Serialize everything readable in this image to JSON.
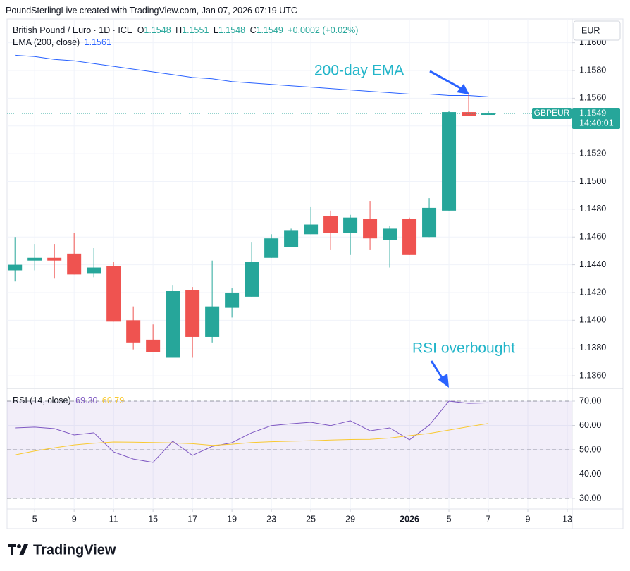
{
  "header": {
    "attribution": "PoundSterlingLive created with TradingView.com, Jan 07, 2026 07:19 UTC"
  },
  "chart_data": [
    {
      "type": "candlestick",
      "symbol": "British Pound / Euro · 1D · ICE",
      "ohlc_legend": [
        {
          "label": "O",
          "value": "1.1548"
        },
        {
          "label": "H",
          "value": "1.1551"
        },
        {
          "label": "L",
          "value": "1.1548"
        },
        {
          "label": "C",
          "value": "1.1549"
        }
      ],
      "change": "+0.0002 (+0.02%)",
      "currency": "EUR",
      "ticker": "GBPEUR",
      "last_price": "1.1549",
      "countdown": "14:40:01",
      "x": [
        0,
        1,
        2,
        3,
        4,
        5,
        6,
        7,
        8,
        9,
        10,
        11,
        12,
        13,
        14,
        15,
        16,
        17,
        18,
        19,
        20,
        21,
        22,
        23,
        24
      ],
      "xlim": [
        -0.4,
        28.25
      ],
      "open": [
        1.1436,
        1.1443,
        1.1445,
        1.1448,
        1.1434,
        1.1439,
        1.14,
        1.1386,
        1.1373,
        1.1422,
        1.1388,
        1.1409,
        1.1417,
        1.1445,
        1.1453,
        1.1462,
        1.1475,
        1.1463,
        1.1473,
        1.1458,
        1.1473,
        1.146,
        1.1479,
        1.155,
        1.1548
      ],
      "high": [
        1.146,
        1.1455,
        1.1455,
        1.1463,
        1.1452,
        1.1442,
        1.141,
        1.1397,
        1.1425,
        1.1424,
        1.1443,
        1.1423,
        1.1456,
        1.1462,
        1.1466,
        1.1482,
        1.1479,
        1.1476,
        1.1486,
        1.1468,
        1.1474,
        1.1488,
        1.1551,
        1.1563,
        1.1551
      ],
      "low": [
        1.1428,
        1.1436,
        1.143,
        1.1433,
        1.1431,
        1.1399,
        1.1379,
        1.1377,
        1.1373,
        1.1373,
        1.1384,
        1.1402,
        1.1417,
        1.1445,
        1.1453,
        1.1462,
        1.1451,
        1.1447,
        1.1451,
        1.1438,
        1.1447,
        1.146,
        1.1479,
        1.1547,
        1.1548
      ],
      "close": [
        1.144,
        1.1445,
        1.1443,
        1.1433,
        1.1438,
        1.1399,
        1.1384,
        1.1377,
        1.1421,
        1.1388,
        1.141,
        1.142,
        1.1442,
        1.1459,
        1.1465,
        1.1469,
        1.1463,
        1.1474,
        1.1459,
        1.1466,
        1.1447,
        1.1481,
        1.155,
        1.1547,
        1.1549
      ],
      "up_color": "#26a69a",
      "down_color": "#ef5350",
      "grid": true,
      "ylim": [
        1.13514,
        1.16171
      ],
      "yticks": [
        {
          "value": 1.136,
          "label": "1.1360"
        },
        {
          "value": 1.138,
          "label": "1.1380"
        },
        {
          "value": 1.14,
          "label": "1.1400"
        },
        {
          "value": 1.142,
          "label": "1.1420"
        },
        {
          "value": 1.144,
          "label": "1.1440"
        },
        {
          "value": 1.146,
          "label": "1.1460"
        },
        {
          "value": 1.148,
          "label": "1.1480"
        },
        {
          "value": 1.15,
          "label": "1.1500"
        },
        {
          "value": 1.152,
          "label": "1.1520"
        },
        {
          "value": 1.154,
          "label": "1.1540"
        },
        {
          "value": 1.156,
          "label": "1.1560"
        },
        {
          "value": 1.158,
          "label": "1.1580"
        },
        {
          "value": 1.16,
          "label": "1.1600"
        }
      ],
      "overlays": [
        {
          "name": "EMA (200, close)",
          "last_label": "1.1561",
          "color": "#2962ff",
          "values": [
            1.1591,
            1.159,
            1.1588,
            1.1587,
            1.1585,
            1.1583,
            1.1581,
            1.1579,
            1.1577,
            1.1575,
            1.1574,
            1.1572,
            1.1571,
            1.157,
            1.1569,
            1.1568,
            1.1567,
            1.1566,
            1.1565,
            1.1564,
            1.1563,
            1.1563,
            1.1562,
            1.1562,
            1.1561
          ]
        }
      ],
      "annotation": "200-day EMA"
    },
    {
      "type": "line",
      "title": "RSI (14, close)",
      "x": [
        0,
        1,
        2,
        3,
        4,
        5,
        6,
        7,
        8,
        9,
        10,
        11,
        12,
        13,
        14,
        15,
        16,
        17,
        18,
        19,
        20,
        21,
        22,
        23,
        24
      ],
      "xlim": [
        -0.4,
        28.25
      ],
      "series": [
        {
          "name": "RSI (14, close)",
          "color": "#7e57c2",
          "last_label": "69.30",
          "values": [
            59.0,
            59.3,
            58.7,
            56.1,
            57.0,
            49.1,
            46.2,
            44.8,
            53.5,
            47.7,
            51.4,
            52.9,
            57.0,
            59.9,
            60.7,
            61.3,
            59.9,
            61.9,
            57.8,
            59.0,
            54.1,
            60.1,
            70.0,
            69.1,
            69.3
          ]
        },
        {
          "color": "#f9c930",
          "last_label": "60.79",
          "values": [
            47.9,
            49.5,
            50.8,
            52.0,
            52.7,
            53.2,
            53.1,
            53.0,
            52.8,
            52.5,
            51.8,
            52.3,
            53.0,
            53.3,
            53.5,
            53.7,
            54.0,
            54.2,
            54.3,
            54.8,
            55.8,
            56.7,
            58.1,
            59.5,
            60.8
          ]
        }
      ],
      "ylim": [
        25.65,
        74.93
      ],
      "yticks": [
        {
          "value": 30,
          "label": "30.00"
        },
        {
          "value": 40,
          "label": "40.00"
        },
        {
          "value": 50,
          "label": "50.00"
        },
        {
          "value": 60,
          "label": "60.00"
        },
        {
          "value": 70,
          "label": "70.00"
        }
      ],
      "levels": [
        30,
        50,
        70
      ],
      "band": [
        30,
        70
      ],
      "grid": true,
      "xticks": [
        {
          "value": 1,
          "label": "5"
        },
        {
          "value": 3,
          "label": "9"
        },
        {
          "value": 5,
          "label": "11"
        },
        {
          "value": 7,
          "label": "15"
        },
        {
          "value": 9,
          "label": "17"
        },
        {
          "value": 11,
          "label": "19"
        },
        {
          "value": 13,
          "label": "23"
        },
        {
          "value": 15,
          "label": "25"
        },
        {
          "value": 17,
          "label": "29"
        },
        {
          "value": 20,
          "label": "2026",
          "bold": true
        },
        {
          "value": 22,
          "label": "5"
        },
        {
          "value": 24,
          "label": "7"
        },
        {
          "value": 26,
          "label": "9"
        },
        {
          "value": 28,
          "label": "13"
        }
      ],
      "annotation": "RSI overbought"
    }
  ],
  "branding": "TradingView"
}
